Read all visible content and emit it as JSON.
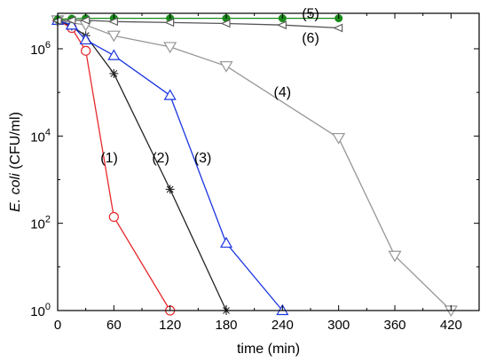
{
  "chart_data": {
    "type": "line",
    "xlabel": "time (min)",
    "ylabel": "E. coli (CFU/ml)",
    "ylabel_italic": "E. coli",
    "ylabel_rest": " (CFU/ml)",
    "xlim": [
      0,
      450
    ],
    "ylim": [
      1,
      6500000
    ],
    "y_scale": "log",
    "grid": false,
    "x_ticks": [
      0,
      60,
      120,
      180,
      240,
      300,
      360,
      420
    ],
    "y_ticks": [
      {
        "value": 1,
        "base": "10",
        "exp": "0"
      },
      {
        "value": 100,
        "base": "10",
        "exp": "2"
      },
      {
        "value": 10000,
        "base": "10",
        "exp": "4"
      },
      {
        "value": 1000000,
        "base": "10",
        "exp": "6"
      }
    ],
    "series": [
      {
        "label": "(1)",
        "color": "#e8282b",
        "marker": "circle-open",
        "x": [
          0,
          15,
          30,
          60,
          120
        ],
        "y": [
          4500000,
          3000000,
          900000,
          140,
          1
        ]
      },
      {
        "label": "(2)",
        "color": "#222222",
        "marker": "asterisk",
        "x": [
          0,
          15,
          30,
          60,
          120,
          180
        ],
        "y": [
          4500000,
          3300000,
          2000000,
          270000,
          600,
          1
        ]
      },
      {
        "label": "(3)",
        "color": "#1a34e0",
        "marker": "triangle-up-open",
        "x": [
          0,
          15,
          30,
          60,
          120,
          180,
          240
        ],
        "y": [
          4500000,
          3500000,
          1600000,
          700000,
          85000,
          35,
          1
        ]
      },
      {
        "label": "(4)",
        "color": "#969696",
        "marker": "triangle-down-open",
        "x": [
          0,
          30,
          60,
          120,
          180,
          300,
          360,
          420
        ],
        "y": [
          4500000,
          3500000,
          2000000,
          1100000,
          400000,
          9000,
          18,
          1
        ]
      },
      {
        "label": "(5)",
        "color": "#1a8a1a",
        "marker": "circle-filled",
        "x": [
          0,
          15,
          30,
          60,
          120,
          180,
          240,
          300
        ],
        "y": [
          4700000,
          4900000,
          5000000,
          5000000,
          5000000,
          5000000,
          5000000,
          5000000
        ]
      },
      {
        "label": "(6)",
        "color": "#555555",
        "marker": "triangle-left-open",
        "x": [
          0,
          15,
          30,
          60,
          120,
          180,
          240,
          300
        ],
        "y": [
          4400000,
          4500000,
          4500000,
          4200000,
          4000000,
          3800000,
          3500000,
          3000000
        ]
      }
    ],
    "annotations": [
      {
        "text": "(1)",
        "x": 55,
        "y": 2500
      },
      {
        "text": "(2)",
        "x": 110,
        "y": 2500
      },
      {
        "text": "(3)",
        "x": 155,
        "y": 2500
      },
      {
        "text": "(4)",
        "x": 240,
        "y": 80000
      },
      {
        "text": "(5)",
        "x": 270,
        "y": 5000000
      },
      {
        "text": "(6)",
        "x": 270,
        "y": 1400000
      }
    ]
  }
}
